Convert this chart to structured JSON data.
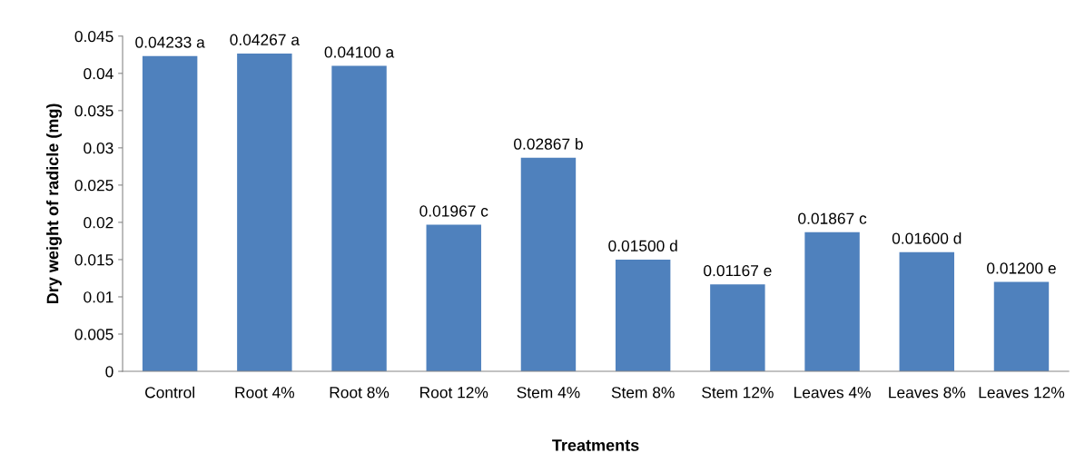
{
  "chart_data": {
    "type": "bar",
    "xlabel": "Treatments",
    "ylabel": "Dry weight of radicle (mg)",
    "categories": [
      "Control",
      "Root 4%",
      "Root 8%",
      "Root 12%",
      "Stem 4%",
      "Stem 8%",
      "Stem 12%",
      "Leaves 4%",
      "Leaves 8%",
      "Leaves 12%"
    ],
    "values": [
      0.04233,
      0.04267,
      0.041,
      0.01967,
      0.02867,
      0.015,
      0.01167,
      0.01867,
      0.016,
      0.012
    ],
    "value_labels": [
      "0.04233 a",
      "0.04267 a",
      "0.04100 a",
      "0.01967 c",
      "0.02867 b",
      "0.01500 d",
      "0.01167 e",
      "0.01867 c",
      "0.01600 d",
      "0.01200 e"
    ],
    "color": "#4f81bd",
    "ylim": [
      0,
      0.045
    ],
    "yticks": [
      0,
      0.005,
      0.01,
      0.015,
      0.02,
      0.025,
      0.03,
      0.035,
      0.04,
      0.045
    ],
    "grid": false
  }
}
